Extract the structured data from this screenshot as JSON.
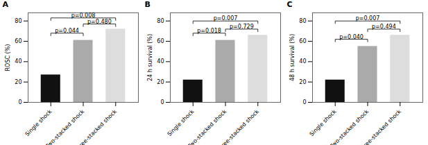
{
  "chart_data": [
    {
      "type": "bar",
      "title": "A",
      "ylabel": "ROSC (%)",
      "categories": [
        "Single shock",
        "Two-stacked shock",
        "Three-stacked shock"
      ],
      "values": [
        27,
        61,
        72
      ],
      "colors": [
        "#111111",
        "#aaaaaa",
        "#dddddd"
      ],
      "ylim": [
        0,
        88
      ],
      "yticks": [
        0,
        20,
        40,
        60,
        80
      ],
      "annotations": [
        {
          "x1": "Single shock",
          "x2": "Two-stacked shock",
          "y": 68,
          "label": "p=0.044"
        },
        {
          "x1": "Two-stacked shock",
          "x2": "Three-stacked shock",
          "y": 77,
          "label": "p=0.480"
        },
        {
          "x1": "Single shock",
          "x2": "Three-stacked shock",
          "y": 83,
          "label": "p=0.008"
        }
      ]
    },
    {
      "type": "bar",
      "title": "B",
      "ylabel": "24 h survival (%)",
      "categories": [
        "Single shock",
        "Two-stacked shock",
        "Three-stacked shock"
      ],
      "values": [
        22,
        61,
        66
      ],
      "colors": [
        "#111111",
        "#aaaaaa",
        "#dddddd"
      ],
      "ylim": [
        0,
        88
      ],
      "yticks": [
        0,
        20,
        40,
        60,
        80
      ],
      "annotations": [
        {
          "x1": "Single shock",
          "x2": "Two-stacked shock",
          "y": 68,
          "label": "p=0.018"
        },
        {
          "x1": "Two-stacked shock",
          "x2": "Three-stacked shock",
          "y": 72,
          "label": "p=0.729"
        },
        {
          "x1": "Single shock",
          "x2": "Three-stacked shock",
          "y": 80,
          "label": "p=0.007"
        }
      ]
    },
    {
      "type": "bar",
      "title": "C",
      "ylabel": "48 h survival (%)",
      "categories": [
        "Single shock",
        "Two-stacked shock",
        "Three-stacked shock"
      ],
      "values": [
        22,
        55,
        66
      ],
      "colors": [
        "#111111",
        "#aaaaaa",
        "#dddddd"
      ],
      "ylim": [
        0,
        88
      ],
      "yticks": [
        0,
        20,
        40,
        60,
        80
      ],
      "annotations": [
        {
          "x1": "Single shock",
          "x2": "Two-stacked shock",
          "y": 62,
          "label": "p=0.040"
        },
        {
          "x1": "Two-stacked shock",
          "x2": "Three-stacked shock",
          "y": 72,
          "label": "p=0.494"
        },
        {
          "x1": "Single shock",
          "x2": "Three-stacked shock",
          "y": 80,
          "label": "p=0.007"
        }
      ]
    }
  ]
}
